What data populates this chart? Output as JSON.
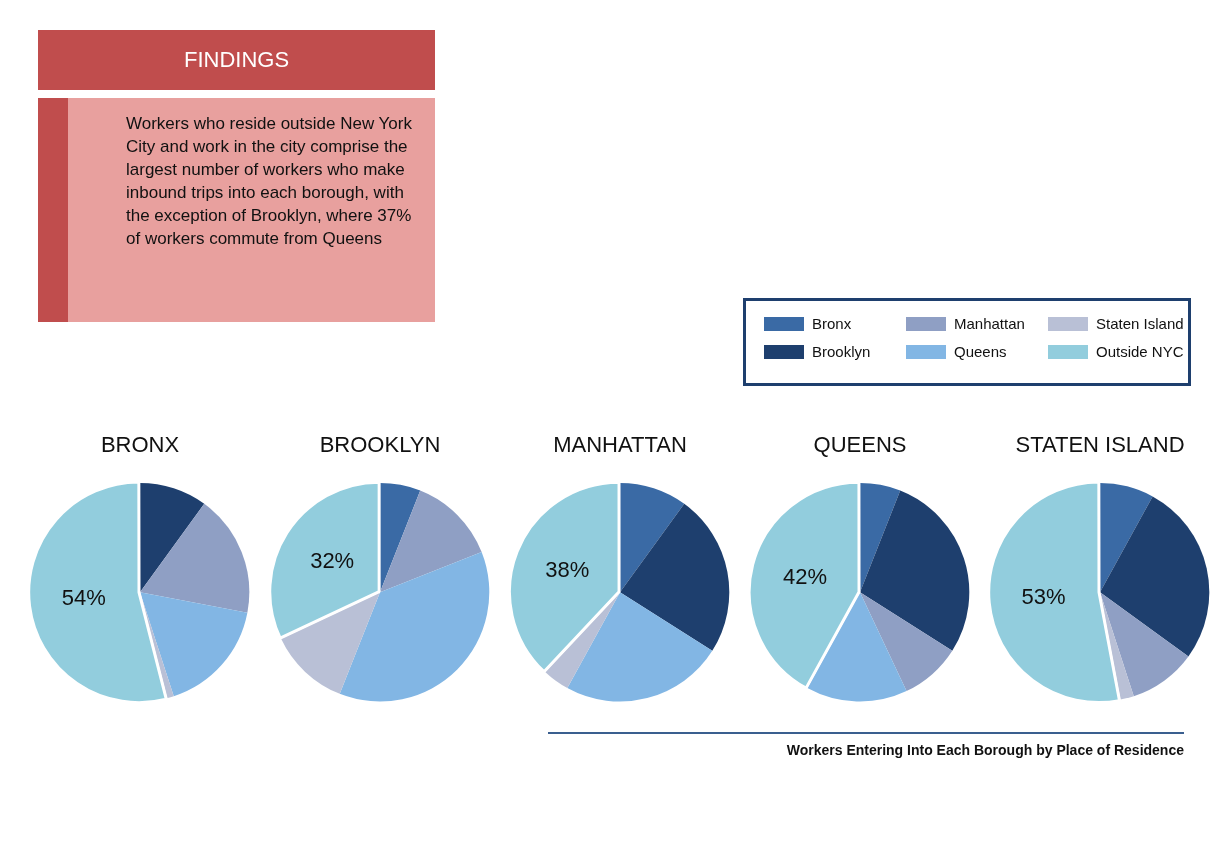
{
  "chart_data": [
    {
      "type": "other",
      "title": "FINDINGS",
      "annotations": [
        "Workers who reside outside New York City and work in the city comprise the largest number of workers who make inbound trips into each borough, with the exception of Brooklyn, where 37% of workers commute from Queens"
      ]
    },
    {
      "type": "pie",
      "title": "BRONX",
      "categories": [
        "Bronx",
        "Brooklyn",
        "Manhattan",
        "Queens",
        "Staten Island",
        "Outside NYC"
      ],
      "values": [
        0,
        10,
        18,
        17,
        1,
        54
      ],
      "colors": [
        "#3a6aa5",
        "#1e3f6e",
        "#8f9fc4",
        "#82b6e4",
        "#b9c0d6",
        "#92cddd"
      ],
      "value_labels": [
        null,
        null,
        null,
        null,
        null,
        "54%"
      ],
      "legend": "top right"
    },
    {
      "type": "pie",
      "title": "BROOKLYN",
      "categories": [
        null,
        null,
        null,
        null,
        null,
        null
      ],
      "values": [
        6,
        0,
        13,
        37,
        12,
        32
      ],
      "colors": [
        "#3a6aa5",
        "#1e3f6e",
        "#8f9fc4",
        "#82b6e4",
        "#b9c0d6",
        "#92cddd"
      ],
      "value_labels": [
        null,
        null,
        null,
        null,
        null,
        "32%"
      ]
    },
    {
      "type": "pie",
      "title": "MANHATTAN",
      "categories": [
        null,
        null,
        null,
        null,
        null,
        null
      ],
      "values": [
        10,
        24,
        0,
        24,
        4,
        38
      ],
      "colors": [
        "#3a6aa5",
        "#1e3f6e",
        "#8f9fc4",
        "#82b6e4",
        "#b9c0d6",
        "#92cddd"
      ],
      "value_labels": [
        null,
        null,
        null,
        null,
        null,
        "38%"
      ]
    },
    {
      "type": "pie",
      "title": "QUEENS",
      "categories": [
        null,
        null,
        null,
        null,
        null,
        null
      ],
      "values": [
        6,
        28,
        9,
        15,
        0,
        42
      ],
      "colors": [
        "#3a6aa5",
        "#1e3f6e",
        "#8f9fc4",
        "#82b6e4",
        "#b9c0d6",
        "#92cddd"
      ],
      "value_labels": [
        null,
        null,
        null,
        null,
        null,
        "42%"
      ]
    },
    {
      "type": "pie",
      "title": "STATEN ISLAND",
      "categories": [
        null,
        null,
        null,
        null,
        null,
        null
      ],
      "values": [
        8,
        27,
        10,
        0,
        2,
        53
      ],
      "colors": [
        "#3a6aa5",
        "#1e3f6e",
        "#8f9fc4",
        "#82b6e4",
        "#b9c0d6",
        "#92cddd"
      ],
      "value_labels": [
        null,
        null,
        null,
        null,
        null,
        "53%"
      ],
      "annotations": [
        "Workers Entering Into Each Borough by Place of Residence"
      ]
    }
  ]
}
